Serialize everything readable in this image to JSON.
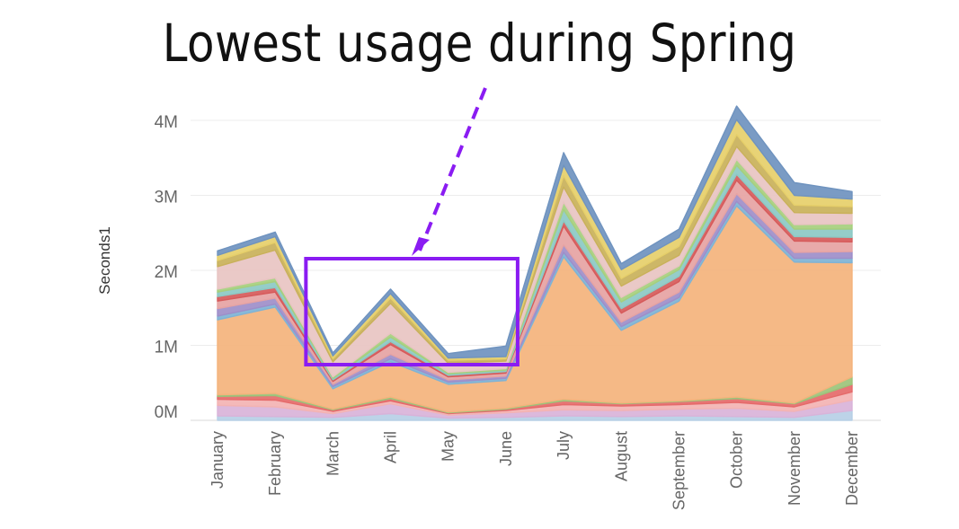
{
  "annotation": {
    "headline": "Lowest usage during Spring",
    "arrow_color": "#8a1cf2",
    "box_color": "#8a1cf2",
    "highlight_months": [
      "March",
      "April",
      "May",
      "June"
    ]
  },
  "chart_data": {
    "type": "area",
    "stacked": true,
    "title": "",
    "xlabel": "",
    "ylabel": "Seconds1",
    "ylim": [
      0,
      4200000
    ],
    "y_ticks": [
      0,
      1000000,
      2000000,
      3000000,
      4000000
    ],
    "y_tick_labels": [
      "0M",
      "1M",
      "2M",
      "3M",
      "4M"
    ],
    "grid": true,
    "legend": "none",
    "categories": [
      "January",
      "February",
      "March",
      "April",
      "May",
      "June",
      "July",
      "August",
      "September",
      "October",
      "November",
      "December"
    ],
    "series": [
      {
        "color": "#b7cfe6",
        "values": [
          60000,
          50000,
          40000,
          90000,
          30000,
          40000,
          60000,
          50000,
          60000,
          50000,
          40000,
          130000
        ]
      },
      {
        "color": "#d9b3d9",
        "values": [
          140000,
          130000,
          50000,
          130000,
          40000,
          60000,
          80000,
          80000,
          90000,
          110000,
          80000,
          140000
        ]
      },
      {
        "color": "#f3b3b3",
        "values": [
          80000,
          90000,
          30000,
          40000,
          20000,
          30000,
          70000,
          60000,
          60000,
          80000,
          60000,
          110000
        ]
      },
      {
        "color": "#e56a6a",
        "values": [
          40000,
          60000,
          20000,
          30000,
          10000,
          20000,
          50000,
          30000,
          40000,
          50000,
          40000,
          100000
        ]
      },
      {
        "color": "#9cc37a",
        "values": [
          20000,
          30000,
          10000,
          20000,
          10000,
          10000,
          20000,
          10000,
          10000,
          20000,
          10000,
          100000
        ]
      },
      {
        "color": "#f4b37c",
        "values": [
          1000000,
          1150000,
          270000,
          470000,
          370000,
          370000,
          1900000,
          970000,
          1330000,
          2550000,
          1880000,
          1520000
        ]
      },
      {
        "color": "#7fb3d5",
        "values": [
          50000,
          40000,
          30000,
          40000,
          30000,
          30000,
          60000,
          50000,
          50000,
          60000,
          50000,
          60000
        ]
      },
      {
        "color": "#9e8ec9",
        "values": [
          100000,
          80000,
          30000,
          60000,
          30000,
          30000,
          100000,
          60000,
          70000,
          100000,
          80000,
          90000
        ]
      },
      {
        "color": "#e6a3a3",
        "values": [
          100000,
          80000,
          40000,
          130000,
          40000,
          40000,
          250000,
          120000,
          140000,
          180000,
          150000,
          130000
        ]
      },
      {
        "color": "#d65a5a",
        "values": [
          60000,
          60000,
          20000,
          40000,
          20000,
          20000,
          70000,
          60000,
          70000,
          80000,
          60000,
          60000
        ]
      },
      {
        "color": "#8cc9c4",
        "values": [
          60000,
          80000,
          20000,
          60000,
          20000,
          20000,
          150000,
          90000,
          90000,
          120000,
          100000,
          110000
        ]
      },
      {
        "color": "#a6cf7d",
        "values": [
          40000,
          50000,
          20000,
          50000,
          20000,
          20000,
          100000,
          60000,
          50000,
          80000,
          60000,
          70000
        ]
      },
      {
        "color": "#e8c4c2",
        "values": [
          300000,
          370000,
          200000,
          400000,
          120000,
          100000,
          200000,
          150000,
          140000,
          170000,
          160000,
          140000
        ]
      },
      {
        "color": "#c9b15a",
        "values": [
          80000,
          100000,
          40000,
          70000,
          40000,
          30000,
          150000,
          100000,
          120000,
          160000,
          100000,
          90000
        ]
      },
      {
        "color": "#e6cf6a",
        "values": [
          70000,
          80000,
          40000,
          60000,
          30000,
          30000,
          140000,
          120000,
          120000,
          200000,
          130000,
          100000
        ]
      },
      {
        "color": "#6f93bf",
        "values": [
          60000,
          60000,
          40000,
          60000,
          60000,
          140000,
          170000,
          80000,
          110000,
          180000,
          170000,
          100000
        ]
      }
    ]
  }
}
